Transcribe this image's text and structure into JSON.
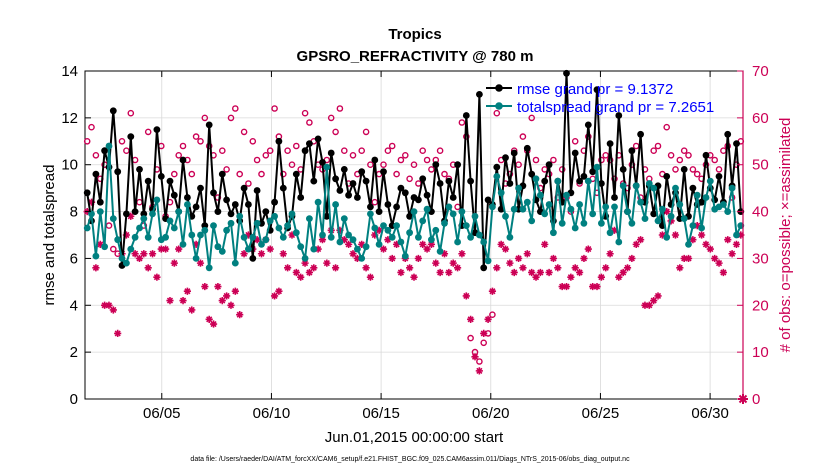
{
  "chart_data": {
    "type": "line",
    "title": "Tropics",
    "subtitle": "GPSRO_REFRACTIVITY @ 780 m",
    "xlabel": "Jun.01,2015 00:00:00 start",
    "ylabel": "rmse and totalspread",
    "ylabel_right": "# of obs: o=possible; ×=assimilated",
    "footer": "data file: /Users/raeder/DAI/ATM_forcXX/CAM6_setup/f.e21.FHIST_BGC.f09_025.CAM6assim.011/Diags_NTrS_2015-06/obs_diag_output.nc",
    "x_range_days": [
      0.5,
      30.5
    ],
    "ylim": [
      0,
      14
    ],
    "ylim_right": [
      0,
      70
    ],
    "x_ticks": [
      {
        "day": 4,
        "label": "06/05"
      },
      {
        "day": 9,
        "label": "06/10"
      },
      {
        "day": 14,
        "label": "06/15"
      },
      {
        "day": 19,
        "label": "06/20"
      },
      {
        "day": 24,
        "label": "06/25"
      },
      {
        "day": 29,
        "label": "06/30"
      }
    ],
    "y_ticks": [
      0,
      2,
      4,
      6,
      8,
      10,
      12,
      14
    ],
    "y_ticks_right": [
      0,
      10,
      20,
      30,
      40,
      50,
      60,
      70
    ],
    "legend": [
      {
        "label": "rmse grand pr = 9.1372",
        "color": "#000000"
      },
      {
        "label": "totalspread grand pr = 7.2651",
        "color": "#00a0a0"
      }
    ],
    "colors": {
      "rmse": "#000000",
      "spread": "#008080",
      "obs": "#cc0055",
      "axis_right": "#cc0055",
      "legend_text": "#0000ff"
    },
    "series": [
      {
        "name": "rmse",
        "axis": "left",
        "values": [
          8.8,
          7.6,
          9.6,
          8.4,
          10.6,
          9.9,
          12.3,
          9.7,
          5.7,
          7.9,
          11.2,
          8.0,
          9.8,
          7.9,
          9.3,
          8.1,
          11.5,
          9.5,
          7.7,
          9.3,
          8.7,
          8.0,
          10.2,
          8.6,
          7.8,
          8.2,
          9.0,
          7.4,
          11.7,
          8.8,
          8.0,
          9.6,
          8.5,
          7.9,
          8.3,
          7.6,
          9.0,
          8.3,
          6.0,
          8.9,
          7.5,
          8.0,
          7.2,
          8.4,
          11.0,
          9.0,
          7.3,
          7.8,
          9.6,
          8.6,
          10.6,
          10.9,
          9.3,
          11.1,
          10.1,
          7.8,
          10.5,
          9.4,
          8.9,
          9.8,
          8.7,
          9.2,
          8.6,
          9.7,
          9.3,
          8.2,
          10.2,
          8.0,
          9.7,
          8.3,
          7.4,
          8.2,
          9.0,
          8.8,
          7.8,
          8.6,
          8.5,
          9.4,
          8.7,
          8.0,
          10.0,
          9.2,
          7.6,
          9.3,
          8.6,
          10.0,
          7.4,
          12.1,
          9.3,
          7.1,
          13.0,
          5.6,
          8.5,
          8.3,
          9.9,
          8.1,
          10.3,
          9.2,
          10.5,
          8.1,
          9.1,
          10.7,
          9.6,
          8.5,
          8.0,
          9.3,
          10.0,
          7.6,
          9.3,
          8.4,
          13.9,
          8.8,
          10.5,
          9.3,
          9.5,
          11.7,
          9.7,
          13.2,
          9.2,
          7.8,
          10.9,
          8.6,
          12.1,
          9.8,
          8.0,
          10.6,
          9.1,
          11.3,
          8.4,
          9.1,
          7.9,
          9.1,
          7.4,
          9.5,
          8.3,
          8.8,
          7.7,
          9.8,
          7.8,
          9.0,
          8.3,
          8.4,
          10.4,
          9.0,
          8.5,
          9.5,
          8.4,
          11.3,
          9.1,
          10.9,
          8.0
        ]
      },
      {
        "name": "totalspread",
        "axis": "left",
        "values": [
          7.3,
          7.9,
          6.1,
          8.0,
          6.5,
          10.8,
          7.7,
          6.8,
          6.0,
          5.8,
          6.4,
          6.9,
          7.3,
          7.7,
          6.9,
          7.9,
          8.5,
          6.8,
          6.9,
          7.6,
          7.3,
          8.0,
          6.6,
          8.3,
          7.0,
          6.0,
          7.0,
          7.2,
          5.6,
          7.4,
          6.5,
          6.3,
          7.2,
          7.5,
          5.8,
          7.8,
          6.9,
          6.4,
          6.9,
          7.5,
          6.6,
          6.8,
          7.6,
          7.8,
          7.3,
          6.9,
          7.4,
          7.9,
          7.1,
          6.5,
          6.0,
          7.7,
          6.4,
          8.4,
          7.0,
          9.9,
          6.9,
          8.3,
          6.7,
          7.7,
          7.0,
          6.8,
          6.4,
          6.0,
          6.5,
          7.9,
          7.3,
          6.6,
          7.4,
          7.2,
          6.9,
          7.4,
          6.7,
          6.1,
          7.1,
          8.0,
          6.9,
          7.6,
          8.1,
          6.8,
          7.2,
          6.3,
          7.5,
          8.2,
          7.9,
          6.7,
          8.0,
          7.4,
          6.9,
          7.8,
          7.0,
          6.7,
          5.9,
          8.2,
          9.5,
          8.8,
          7.8,
          6.9,
          8.1,
          9.0,
          8.1,
          8.4,
          7.6,
          9.4,
          8.7,
          7.9,
          8.3,
          7.1,
          9.3,
          7.5,
          8.7,
          8.1,
          7.3,
          8.3,
          7.5,
          9.3,
          7.9,
          9.9,
          7.5,
          8.2,
          7.1,
          8.2,
          6.7,
          9.1,
          8.0,
          7.5,
          9.1,
          8.4,
          7.7,
          9.2,
          9.0,
          7.6,
          8.1,
          6.9,
          7.8,
          9.0,
          8.3,
          7.7,
          6.6,
          7.4,
          8.7,
          7.3,
          8.6,
          9.3,
          8.1,
          8.2,
          8.3,
          8.0,
          9.0,
          7.0,
          7.4
        ]
      },
      {
        "name": "obs_possible",
        "axis": "right",
        "marker": "o",
        "values": [
          55,
          58,
          52,
          47,
          50,
          37,
          32,
          31,
          55,
          53,
          61,
          51,
          42,
          37,
          57,
          41,
          49,
          54,
          39,
          42,
          48,
          52,
          54,
          51,
          48,
          56,
          55,
          60,
          54,
          52,
          43,
          53,
          49,
          60,
          62,
          48,
          57,
          46,
          55,
          51,
          48,
          52,
          53,
          62,
          56,
          48,
          53,
          50,
          54,
          49,
          61,
          59,
          55,
          50,
          49,
          51,
          60,
          57,
          62,
          53,
          46,
          52,
          48,
          53,
          57,
          50,
          42,
          48,
          50,
          53,
          54,
          48,
          51,
          52,
          47,
          50,
          46,
          53,
          51,
          49,
          51,
          53,
          48,
          47,
          50,
          41,
          59,
          56,
          13,
          10,
          8,
          12,
          14,
          18,
          61,
          51,
          46,
          48,
          53,
          50,
          56,
          53,
          60,
          51,
          45,
          49,
          48,
          51,
          43,
          49,
          43,
          40,
          55,
          46,
          53,
          56,
          47,
          44,
          51,
          52,
          51,
          47,
          52,
          46,
          45,
          50,
          54,
          43,
          49,
          47,
          53,
          54,
          48,
          58,
          52,
          49,
          51,
          53,
          52,
          49,
          48,
          47,
          50,
          52,
          51,
          49,
          53,
          54,
          43,
          50,
          55
        ]
      },
      {
        "name": "obs_assimilated",
        "axis": "right",
        "marker": "*",
        "values": [
          40,
          42,
          28,
          33,
          20,
          20,
          19,
          14,
          31,
          35,
          39,
          31,
          30,
          31,
          28,
          31,
          26,
          32,
          32,
          21,
          29,
          32,
          21,
          23,
          19,
          33,
          29,
          24,
          17,
          16,
          24,
          21,
          22,
          20,
          23,
          18,
          31,
          35,
          32,
          34,
          31,
          34,
          32,
          22,
          23,
          31,
          28,
          35,
          27,
          26,
          29,
          27,
          28,
          32,
          34,
          29,
          36,
          28,
          36,
          34,
          33,
          31,
          30,
          33,
          28,
          26,
          35,
          36,
          32,
          34,
          30,
          33,
          27,
          30,
          28,
          26,
          30,
          33,
          32,
          33,
          29,
          27,
          31,
          27,
          29,
          28,
          31,
          22,
          17,
          9,
          6,
          14,
          17,
          23,
          28,
          33,
          32,
          29,
          27,
          30,
          28,
          31,
          27,
          26,
          27,
          33,
          27,
          30,
          28,
          24,
          24,
          26,
          28,
          27,
          30,
          32,
          24,
          24,
          26,
          28,
          31,
          36,
          26,
          27,
          28,
          30,
          33,
          34,
          20,
          20,
          21,
          22,
          35,
          40,
          38,
          35,
          28,
          30,
          30,
          34,
          37,
          35,
          33,
          32,
          30,
          29,
          27,
          34,
          31,
          33,
          35
        ]
      }
    ]
  }
}
